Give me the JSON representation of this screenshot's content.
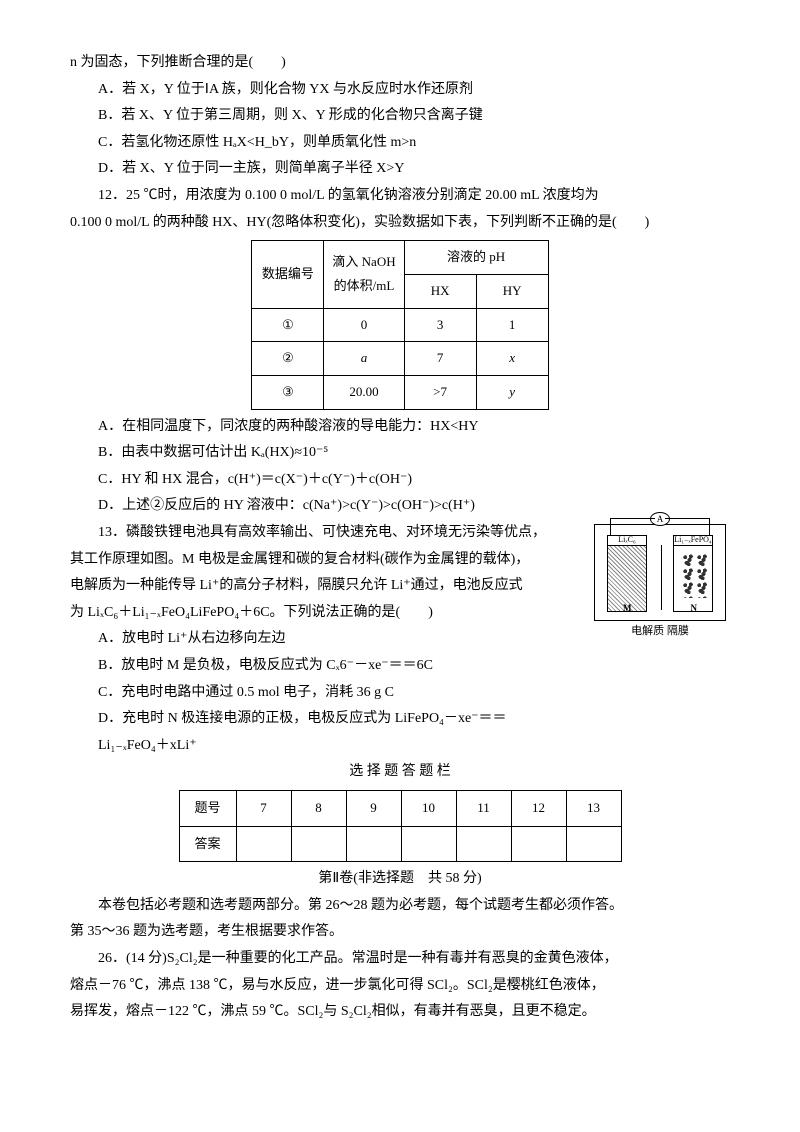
{
  "q11": {
    "stem": "n 为固态，下列推断合理的是(　　)",
    "A": "A．若 X，Y 位于ⅠA 族，则化合物 YX 与水反应时水作还原剂",
    "B": "B．若 X、Y 位于第三周期，则 X、Y 形成的化合物只含离子键",
    "C": "C．若氢化物还原性 HₐX<H_bY，则单质氧化性 m>n",
    "D": "D．若 X、Y 位于同一主族，则简单离子半径 X>Y"
  },
  "q12": {
    "stem": "12．25 ℃时，用浓度为 0.100 0 mol/L 的氢氧化钠溶液分别滴定 20.00 mL 浓度均为",
    "stem2": "0.100 0 mol/L 的两种酸 HX、HY(忽略体积变化)，实验数据如下表，下列判断不正确的是(　　)",
    "table": {
      "h1": "数据编号",
      "h2a": "滴入 NaOH",
      "h2b": "的体积/mL",
      "h3": "溶液的 pH",
      "h3a": "HX",
      "h3b": "HY",
      "rows": [
        {
          "n": "①",
          "v": "0",
          "hx": "3",
          "hy": "1"
        },
        {
          "n": "②",
          "v": "a",
          "hx": "7",
          "hy": "x"
        },
        {
          "n": "③",
          "v": "20.00",
          "hx": ">7",
          "hy": "y"
        }
      ]
    },
    "A": "A．在相同温度下，同浓度的两种酸溶液的导电能力：HX<HY",
    "B": "B．由表中数据可估计出 Kₐ(HX)≈10⁻⁵",
    "C": "C．HY 和 HX 混合，c(H⁺)＝c(X⁻)＋c(Y⁻)＋c(OH⁻)",
    "D": "D．上述②反应后的 HY 溶液中：c(Na⁺)>c(Y⁻)>c(OH⁻)>c(H⁺)"
  },
  "q13": {
    "stem1": "13．磷酸铁锂电池具有高效率输出、可快速充电、对环境无污染等优点，",
    "stem2": "其工作原理如图。M 电极是金属锂和碳的复合材料(碳作为金属锂的载体)，",
    "stem3": "电解质为一种能传导 Li⁺的高分子材料，隔膜只允许 Li⁺通过，电池反应式",
    "stem4": "为 LiₓC₆＋Li₁₋ₓFeO₄LiFePO₄＋6C。下列说法正确的是(　　)",
    "A": "A．放电时 Li⁺从右边移向左边",
    "B": "B．放电时 M 是负极，电极反应式为 Cₓ6⁻－xe⁻＝＝6C",
    "C": "C．充电时电路中通过 0.5 mol 电子，消耗 36 g C",
    "D1": "D．充电时 N 极连接电源的正极，电极反应式为 LiFePO₄－xe⁻＝＝",
    "D2": "Li₁₋ₓFeO₄＋xLi⁺",
    "fig": {
      "labelL": "LiₓC₆",
      "labelR": "Li₁₋ₓFePO₄",
      "M": "M",
      "N": "N",
      "bottom": "电解质  隔膜",
      "meter": "A"
    }
  },
  "answer_section": {
    "title": "选 择 题 答 题 栏",
    "row1_label": "题号",
    "row1": [
      "7",
      "8",
      "9",
      "10",
      "11",
      "12",
      "13"
    ],
    "row2_label": "答案",
    "row2": [
      "",
      "",
      "",
      "",
      "",
      "",
      ""
    ]
  },
  "part2": {
    "title": "第Ⅱ卷(非选择题　共 58 分)",
    "intro1": "本卷包括必考题和选考题两部分。第 26～28 题为必考题，每个试题考生都必须作答。",
    "intro2": "第 35～36 题为选考题，考生根据要求作答。"
  },
  "q26": {
    "line1": "26．(14 分)S₂Cl₂是一种重要的化工产品。常温时是一种有毒并有恶臭的金黄色液体，",
    "line2": "熔点－76 ℃，沸点 138 ℃，易与水反应，进一步氯化可得 SCl₂。SCl₂是樱桃红色液体，",
    "line3": "易挥发，熔点－122 ℃，沸点 59 ℃。SCl₂与 S₂Cl₂相似，有毒并有恶臭，且更不稳定。"
  }
}
